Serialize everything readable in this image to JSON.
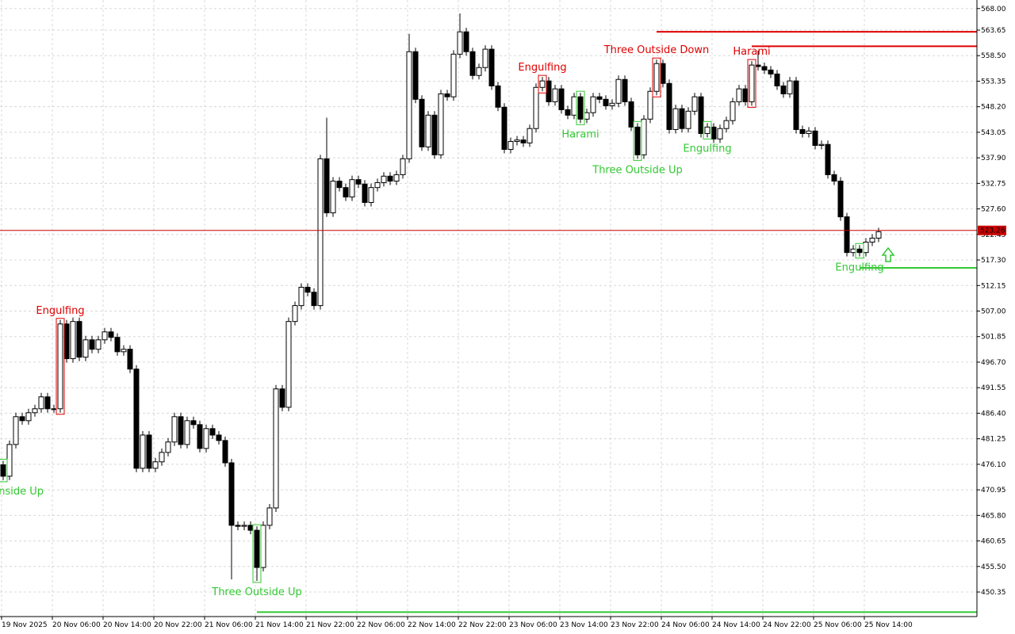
{
  "chart_data": {
    "type": "candlestick",
    "categories": [
      "19 Nov 2025",
      null,
      null,
      null,
      null,
      null,
      null,
      null,
      "20 Nov 06:00",
      null,
      null,
      null,
      null,
      null,
      null,
      null,
      "20 Nov 14:00",
      null,
      null,
      null,
      null,
      null,
      null,
      null,
      "20 Nov 22:00",
      null,
      null,
      null,
      null,
      null,
      null,
      null,
      "21 Nov 06:00",
      null,
      null,
      null,
      null,
      null,
      null,
      null,
      "21 Nov 14:00",
      null,
      null,
      null,
      null,
      null,
      null,
      null,
      "21 Nov 22:00",
      null,
      null,
      null,
      null,
      null,
      null,
      null,
      "22 Nov 06:00",
      null,
      null,
      null,
      null,
      null,
      null,
      null,
      "22 Nov 14:00",
      null,
      null,
      null,
      null,
      null,
      null,
      null,
      "22 Nov 22:00",
      null,
      null,
      null,
      null,
      null,
      null,
      null,
      "23 Nov 06:00",
      null,
      null,
      null,
      null,
      null,
      null,
      null,
      "23 Nov 14:00",
      null,
      null,
      null,
      null,
      null,
      null,
      null,
      "23 Nov 22:00",
      null,
      null,
      null,
      null,
      null,
      null,
      null,
      "24 Nov 06:00",
      null,
      null,
      null,
      null,
      null,
      null,
      null,
      "24 Nov 14:00",
      null,
      null,
      null,
      null,
      null,
      null,
      null,
      "24 Nov 22:00",
      null,
      null,
      null,
      null,
      null,
      null,
      null,
      "25 Nov 06:00",
      null,
      null,
      null,
      null,
      null,
      null,
      null,
      "25 Nov 14:00",
      null,
      null
    ],
    "open": [
      476.0,
      473.7,
      480.1,
      485.7,
      484.9,
      486.5,
      487.3,
      489.7,
      487.3,
      487.3,
      504.4,
      497.4,
      504.9,
      497.7,
      501.2,
      499.3,
      501.2,
      502.8,
      501.7,
      498.8,
      499.3,
      495.3,
      475.3,
      482.0,
      475.3,
      476.6,
      478.5,
      480.6,
      485.7,
      480.1,
      484.9,
      484.1,
      479.3,
      483.3,
      482.0,
      480.9,
      476.4,
      463.8,
      463.6,
      463.8,
      462.8,
      455.3,
      463.8,
      467.3,
      491.3,
      487.6,
      504.9,
      508.1,
      511.8,
      510.8,
      508.1,
      537.7,
      526.8,
      533.2,
      531.9,
      530.0,
      533.5,
      532.6,
      528.9,
      531.9,
      532.9,
      534.2,
      533.2,
      534.5,
      537.7,
      559.3,
      549.7,
      540.1,
      546.5,
      538.5,
      550.8,
      550.2,
      558.8,
      563.3,
      559.3,
      554.5,
      556.1,
      559.8,
      552.4,
      548.1,
      539.6,
      541.2,
      541.5,
      540.9,
      543.8,
      552.1,
      553.4,
      549.2,
      551.8,
      547.6,
      546.5,
      550.2,
      545.7,
      547.0,
      550.2,
      549.7,
      548.4,
      548.9,
      553.7,
      549.2,
      544.1,
      538.5,
      545.7,
      551.3,
      556.9,
      552.9,
      543.6,
      547.8,
      543.8,
      547.3,
      550.2,
      542.8,
      544.1,
      541.7,
      543.8,
      545.4,
      549.2,
      551.8,
      549.2,
      556.6,
      556.3,
      555.6,
      554.8,
      552.4,
      550.8,
      553.4,
      543.6,
      542.8,
      543.3,
      540.4,
      540.6,
      534.5,
      533.2,
      526.0,
      518.8,
      519.5,
      518.8,
      520.9,
      521.7
    ],
    "high": [
      476.8,
      480.9,
      486.5,
      486.5,
      487.3,
      488.1,
      490.5,
      490.5,
      488.1,
      505.2,
      505.2,
      505.7,
      505.7,
      502.0,
      502.0,
      502.0,
      503.6,
      503.6,
      502.5,
      500.1,
      500.1,
      496.1,
      482.8,
      482.8,
      477.4,
      479.3,
      481.4,
      486.5,
      486.5,
      485.7,
      485.7,
      484.9,
      484.1,
      484.1,
      482.8,
      481.7,
      477.2,
      464.6,
      464.6,
      464.6,
      463.6,
      464.6,
      468.1,
      492.1,
      492.1,
      505.7,
      508.9,
      512.6,
      512.6,
      511.6,
      538.5,
      546.0,
      534.0,
      534.0,
      532.7,
      534.3,
      534.3,
      533.4,
      532.7,
      533.7,
      535.0,
      535.0,
      535.3,
      538.5,
      562.9,
      560.1,
      550.5,
      547.3,
      547.3,
      551.6,
      551.6,
      559.6,
      567.0,
      564.1,
      560.1,
      556.9,
      560.6,
      560.6,
      553.2,
      548.9,
      542.0,
      542.3,
      542.3,
      544.6,
      552.9,
      554.2,
      554.2,
      552.6,
      552.6,
      548.4,
      551.0,
      551.0,
      547.8,
      551.0,
      551.0,
      550.5,
      549.7,
      554.5,
      554.5,
      550.0,
      544.9,
      546.5,
      552.1,
      557.7,
      557.7,
      553.7,
      548.6,
      548.6,
      548.1,
      551.0,
      551.0,
      544.9,
      544.9,
      544.6,
      546.2,
      550.0,
      552.6,
      552.6,
      557.4,
      559.5,
      557.1,
      556.4,
      555.6,
      553.2,
      554.2,
      554.2,
      544.4,
      544.1,
      544.1,
      541.4,
      541.4,
      535.3,
      534.0,
      526.8,
      520.3,
      520.3,
      521.7,
      522.5,
      523.8
    ],
    "low": [
      472.9,
      472.9,
      479.3,
      484.1,
      484.1,
      485.7,
      486.5,
      486.5,
      486.5,
      486.5,
      496.6,
      496.6,
      496.9,
      496.9,
      498.5,
      498.5,
      500.4,
      500.9,
      498.0,
      498.0,
      494.5,
      474.5,
      474.5,
      474.5,
      474.5,
      475.8,
      477.7,
      479.8,
      479.3,
      479.3,
      483.3,
      478.5,
      478.5,
      481.2,
      480.1,
      475.6,
      452.9,
      462.8,
      462.8,
      462.0,
      452.6,
      454.5,
      463.0,
      466.5,
      486.8,
      486.8,
      504.1,
      507.3,
      510.0,
      507.3,
      507.3,
      526.0,
      526.0,
      531.1,
      529.2,
      529.2,
      531.8,
      528.1,
      528.1,
      531.1,
      532.1,
      532.4,
      532.4,
      533.7,
      536.9,
      548.9,
      539.3,
      539.3,
      537.7,
      537.7,
      549.4,
      549.4,
      558.0,
      558.5,
      553.7,
      553.7,
      555.3,
      551.6,
      547.3,
      538.8,
      538.8,
      540.4,
      540.1,
      540.1,
      543.0,
      551.3,
      548.4,
      548.4,
      546.8,
      545.7,
      545.7,
      544.9,
      544.9,
      546.2,
      548.9,
      547.6,
      547.6,
      548.1,
      548.4,
      543.3,
      537.7,
      537.7,
      544.9,
      550.5,
      552.1,
      542.8,
      542.8,
      543.0,
      543.0,
      546.5,
      542.0,
      542.0,
      540.9,
      540.9,
      543.0,
      544.6,
      548.4,
      548.4,
      548.4,
      555.5,
      554.8,
      554.0,
      551.6,
      550.0,
      550.0,
      542.8,
      542.0,
      542.0,
      539.6,
      539.6,
      533.7,
      532.4,
      525.2,
      518.0,
      518.0,
      518.0,
      518.0,
      520.1,
      520.9
    ],
    "close": [
      473.7,
      480.1,
      485.7,
      484.9,
      486.5,
      487.3,
      489.7,
      487.3,
      487.3,
      504.4,
      497.4,
      504.9,
      497.7,
      501.2,
      499.3,
      501.2,
      502.8,
      501.7,
      498.8,
      499.3,
      495.3,
      475.3,
      482.0,
      475.3,
      476.6,
      478.5,
      480.6,
      485.7,
      480.1,
      484.9,
      484.1,
      479.3,
      483.3,
      482.0,
      480.9,
      476.4,
      463.8,
      463.6,
      463.8,
      462.8,
      455.3,
      463.8,
      467.3,
      491.3,
      487.6,
      504.9,
      508.1,
      511.8,
      510.8,
      508.1,
      537.7,
      526.8,
      533.2,
      531.9,
      530.0,
      533.5,
      532.6,
      528.9,
      531.9,
      532.9,
      534.2,
      533.2,
      534.5,
      537.7,
      559.3,
      549.7,
      540.1,
      546.5,
      538.5,
      550.8,
      550.2,
      558.8,
      563.3,
      559.3,
      554.5,
      556.1,
      559.8,
      552.4,
      548.1,
      539.6,
      541.2,
      541.5,
      540.9,
      543.8,
      552.1,
      553.4,
      549.2,
      551.8,
      547.6,
      546.5,
      550.2,
      545.7,
      547.0,
      550.2,
      549.7,
      548.4,
      548.9,
      553.7,
      549.2,
      544.1,
      538.5,
      545.7,
      551.3,
      556.9,
      552.9,
      543.6,
      547.8,
      543.8,
      547.3,
      550.2,
      542.8,
      544.1,
      541.7,
      543.8,
      545.4,
      549.2,
      551.8,
      549.2,
      556.6,
      556.3,
      555.6,
      554.8,
      552.4,
      550.8,
      553.4,
      543.6,
      542.8,
      543.3,
      540.4,
      540.6,
      534.5,
      533.2,
      526.0,
      518.8,
      519.5,
      518.8,
      520.9,
      521.7,
      523.0
    ],
    "up_color": "#ffffff",
    "down_color": "#000000",
    "ylim": [
      445.4,
      569.72
    ],
    "yticks": [
      {
        "value": 568.0,
        "label": "568.00"
      },
      563.65,
      {
        "value": 558.5,
        "label": "558.50"
      },
      553.35,
      {
        "value": 548.2,
        "label": "548.20"
      },
      543.05,
      {
        "value": 537.9,
        "label": "537.90"
      },
      532.75,
      {
        "value": 527.6,
        "label": "527.60"
      },
      522.45,
      {
        "value": 517.3,
        "label": "517.30"
      },
      512.15,
      {
        "value": 507.0,
        "label": "507.00"
      },
      501.85,
      {
        "value": 496.7,
        "label": "496.70"
      },
      491.55,
      {
        "value": 486.4,
        "label": "486.40"
      },
      481.25,
      {
        "value": 476.1,
        "label": "476.10"
      },
      470.95,
      {
        "value": 465.8,
        "label": "465.80"
      },
      460.65,
      {
        "value": 455.5,
        "label": "455.50"
      },
      450.35
    ],
    "grid": true,
    "last_price": 523.26,
    "last_price_color": "#c80000",
    "levels": [
      {
        "value": 563.3,
        "color": "#e00000",
        "from_index": 103
      },
      {
        "value": 560.4,
        "color": "#e00000",
        "from_index": 118
      },
      {
        "value": 515.7,
        "color": "#32c832",
        "from_index": 135
      },
      {
        "value": 446.3,
        "color": "#32c832",
        "from_index": 40
      }
    ],
    "patterns": [
      {
        "text": "Three Inside Up",
        "color": "#32c832",
        "index": 0,
        "position": "below"
      },
      {
        "text": "Engulfing",
        "color": "#e00000",
        "index": 9,
        "position": "above"
      },
      {
        "text": "Three Outside Up",
        "color": "#32c832",
        "index": 40,
        "position": "below"
      },
      {
        "text": "Engulfing",
        "color": "#e00000",
        "index": 85,
        "position": "above"
      },
      {
        "text": "Harami",
        "color": "#32c832",
        "index": 91,
        "position": "below"
      },
      {
        "text": "Three Outside Up",
        "color": "#32c832",
        "index": 100,
        "position": "below"
      },
      {
        "text": "Three Outside Down",
        "color": "#e00000",
        "index": 103,
        "position": "above"
      },
      {
        "text": "Engulfing",
        "color": "#32c832",
        "index": 111,
        "position": "below"
      },
      {
        "text": "Harami",
        "color": "#e00000",
        "index": 118,
        "position": "above"
      },
      {
        "text": "Engulfing",
        "color": "#32c832",
        "index": 135,
        "position": "below"
      }
    ]
  }
}
